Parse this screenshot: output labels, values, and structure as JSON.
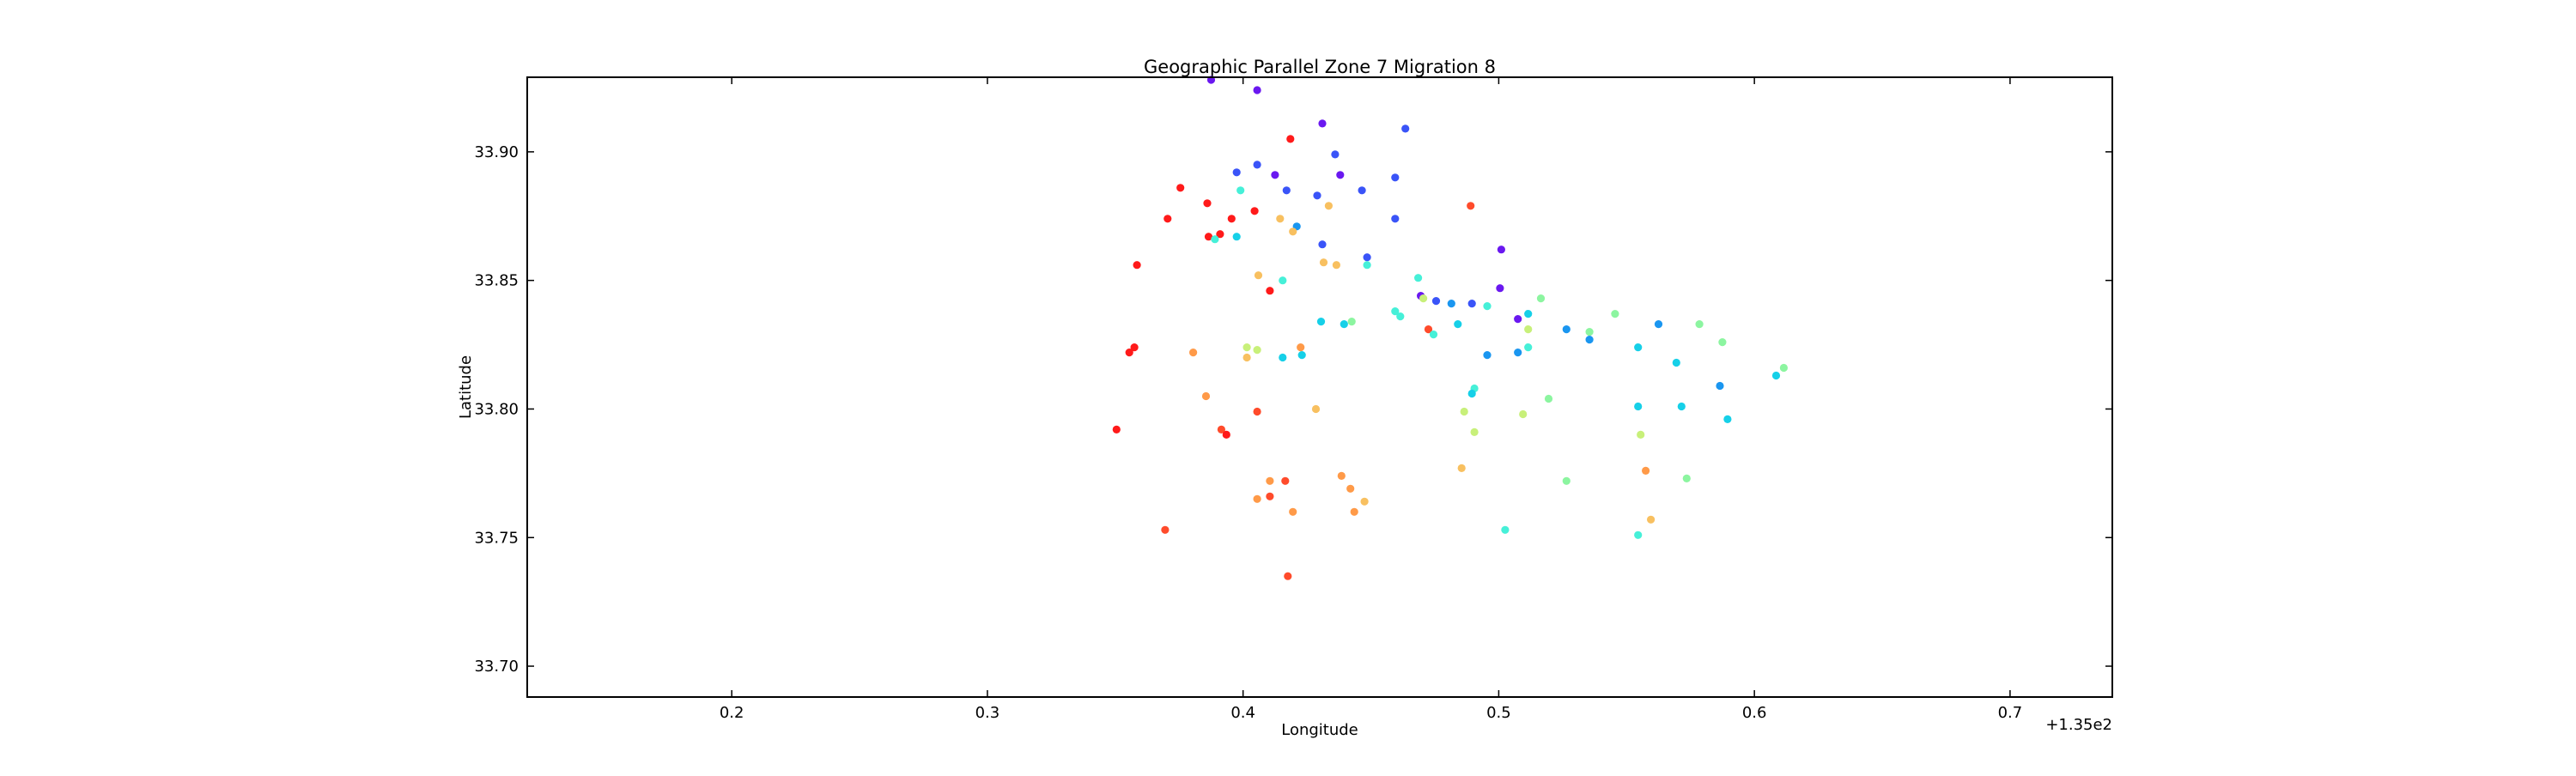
{
  "chart_data": {
    "type": "scatter",
    "title": "Geographic Parallel Zone 7 Migration 8",
    "xlabel": "Longitude",
    "ylabel": "Latitude",
    "x_offset_label": "+1.35e2",
    "xlim": [
      0.12,
      0.74
    ],
    "ylim": [
      33.688,
      33.929
    ],
    "x_ticks": [
      0.2,
      0.3,
      0.4,
      0.5,
      0.6,
      0.7
    ],
    "x_tick_labels": [
      "0.2",
      "0.3",
      "0.4",
      "0.5",
      "0.6",
      "0.7"
    ],
    "y_ticks": [
      33.7,
      33.75,
      33.8,
      33.85,
      33.9
    ],
    "y_tick_labels": [
      "33.70",
      "33.75",
      "33.80",
      "33.85",
      "33.90"
    ],
    "grid": false,
    "legend": "none",
    "colors": {
      "red": "#ff1a1a",
      "red_orange": "#ff4b2b",
      "orange": "#ff9a48",
      "light_orange": "#f8c060",
      "yellow_green": "#c8f07a",
      "light_green": "#8cf5a0",
      "aqua": "#46f0d8",
      "cyan": "#16d0e8",
      "sky_blue": "#1a96f0",
      "blue": "#3a54f8",
      "violet": "#6a18f0"
    },
    "points": [
      {
        "x": 0.3875,
        "y": 33.928,
        "c": "violet"
      },
      {
        "x": 0.4055,
        "y": 33.924,
        "c": "violet"
      },
      {
        "x": 0.431,
        "y": 33.911,
        "c": "violet"
      },
      {
        "x": 0.4635,
        "y": 33.909,
        "c": "blue"
      },
      {
        "x": 0.4185,
        "y": 33.905,
        "c": "red"
      },
      {
        "x": 0.436,
        "y": 33.899,
        "c": "blue"
      },
      {
        "x": 0.4055,
        "y": 33.895,
        "c": "blue"
      },
      {
        "x": 0.3975,
        "y": 33.892,
        "c": "blue"
      },
      {
        "x": 0.4125,
        "y": 33.891,
        "c": "violet"
      },
      {
        "x": 0.438,
        "y": 33.891,
        "c": "violet"
      },
      {
        "x": 0.4595,
        "y": 33.89,
        "c": "blue"
      },
      {
        "x": 0.3755,
        "y": 33.886,
        "c": "red"
      },
      {
        "x": 0.399,
        "y": 33.885,
        "c": "aqua"
      },
      {
        "x": 0.417,
        "y": 33.885,
        "c": "blue"
      },
      {
        "x": 0.4465,
        "y": 33.885,
        "c": "blue"
      },
      {
        "x": 0.429,
        "y": 33.883,
        "c": "blue"
      },
      {
        "x": 0.386,
        "y": 33.88,
        "c": "red"
      },
      {
        "x": 0.4335,
        "y": 33.879,
        "c": "light_orange"
      },
      {
        "x": 0.489,
        "y": 33.879,
        "c": "red_orange"
      },
      {
        "x": 0.4045,
        "y": 33.877,
        "c": "red"
      },
      {
        "x": 0.3705,
        "y": 33.874,
        "c": "red"
      },
      {
        "x": 0.3955,
        "y": 33.874,
        "c": "red"
      },
      {
        "x": 0.4145,
        "y": 33.874,
        "c": "light_orange"
      },
      {
        "x": 0.4595,
        "y": 33.874,
        "c": "blue"
      },
      {
        "x": 0.421,
        "y": 33.871,
        "c": "sky_blue"
      },
      {
        "x": 0.4195,
        "y": 33.869,
        "c": "light_orange"
      },
      {
        "x": 0.391,
        "y": 33.868,
        "c": "red"
      },
      {
        "x": 0.3865,
        "y": 33.867,
        "c": "red"
      },
      {
        "x": 0.3975,
        "y": 33.867,
        "c": "cyan"
      },
      {
        "x": 0.389,
        "y": 33.866,
        "c": "aqua"
      },
      {
        "x": 0.431,
        "y": 33.864,
        "c": "blue"
      },
      {
        "x": 0.501,
        "y": 33.862,
        "c": "violet"
      },
      {
        "x": 0.4485,
        "y": 33.859,
        "c": "blue"
      },
      {
        "x": 0.4315,
        "y": 33.857,
        "c": "light_orange"
      },
      {
        "x": 0.4365,
        "y": 33.856,
        "c": "light_orange"
      },
      {
        "x": 0.4485,
        "y": 33.856,
        "c": "aqua"
      },
      {
        "x": 0.3585,
        "y": 33.856,
        "c": "red"
      },
      {
        "x": 0.406,
        "y": 33.852,
        "c": "light_orange"
      },
      {
        "x": 0.4685,
        "y": 33.851,
        "c": "aqua"
      },
      {
        "x": 0.4155,
        "y": 33.85,
        "c": "aqua"
      },
      {
        "x": 0.5005,
        "y": 33.847,
        "c": "violet"
      },
      {
        "x": 0.4105,
        "y": 33.846,
        "c": "red"
      },
      {
        "x": 0.4695,
        "y": 33.844,
        "c": "violet"
      },
      {
        "x": 0.4705,
        "y": 33.843,
        "c": "yellow_green"
      },
      {
        "x": 0.5165,
        "y": 33.843,
        "c": "light_green"
      },
      {
        "x": 0.4755,
        "y": 33.842,
        "c": "blue"
      },
      {
        "x": 0.4815,
        "y": 33.841,
        "c": "sky_blue"
      },
      {
        "x": 0.4895,
        "y": 33.841,
        "c": "blue"
      },
      {
        "x": 0.4955,
        "y": 33.84,
        "c": "aqua"
      },
      {
        "x": 0.4595,
        "y": 33.838,
        "c": "aqua"
      },
      {
        "x": 0.4615,
        "y": 33.836,
        "c": "aqua"
      },
      {
        "x": 0.5115,
        "y": 33.837,
        "c": "cyan"
      },
      {
        "x": 0.5455,
        "y": 33.837,
        "c": "light_green"
      },
      {
        "x": 0.5075,
        "y": 33.835,
        "c": "violet"
      },
      {
        "x": 0.4305,
        "y": 33.834,
        "c": "cyan"
      },
      {
        "x": 0.4395,
        "y": 33.833,
        "c": "cyan"
      },
      {
        "x": 0.4425,
        "y": 33.834,
        "c": "light_green"
      },
      {
        "x": 0.484,
        "y": 33.833,
        "c": "cyan"
      },
      {
        "x": 0.5625,
        "y": 33.833,
        "c": "sky_blue"
      },
      {
        "x": 0.5785,
        "y": 33.833,
        "c": "light_green"
      },
      {
        "x": 0.5265,
        "y": 33.831,
        "c": "sky_blue"
      },
      {
        "x": 0.4725,
        "y": 33.831,
        "c": "red_orange"
      },
      {
        "x": 0.5115,
        "y": 33.831,
        "c": "yellow_green"
      },
      {
        "x": 0.4745,
        "y": 33.829,
        "c": "aqua"
      },
      {
        "x": 0.5355,
        "y": 33.83,
        "c": "light_green"
      },
      {
        "x": 0.5355,
        "y": 33.827,
        "c": "sky_blue"
      },
      {
        "x": 0.5875,
        "y": 33.826,
        "c": "light_green"
      },
      {
        "x": 0.4015,
        "y": 33.824,
        "c": "yellow_green"
      },
      {
        "x": 0.4225,
        "y": 33.824,
        "c": "orange"
      },
      {
        "x": 0.5115,
        "y": 33.824,
        "c": "aqua"
      },
      {
        "x": 0.5545,
        "y": 33.824,
        "c": "cyan"
      },
      {
        "x": 0.3575,
        "y": 33.824,
        "c": "red"
      },
      {
        "x": 0.3555,
        "y": 33.822,
        "c": "red"
      },
      {
        "x": 0.3805,
        "y": 33.822,
        "c": "orange"
      },
      {
        "x": 0.4055,
        "y": 33.823,
        "c": "yellow_green"
      },
      {
        "x": 0.4015,
        "y": 33.82,
        "c": "light_orange"
      },
      {
        "x": 0.4155,
        "y": 33.82,
        "c": "cyan"
      },
      {
        "x": 0.423,
        "y": 33.821,
        "c": "cyan"
      },
      {
        "x": 0.4955,
        "y": 33.821,
        "c": "sky_blue"
      },
      {
        "x": 0.5075,
        "y": 33.822,
        "c": "sky_blue"
      },
      {
        "x": 0.5695,
        "y": 33.818,
        "c": "cyan"
      },
      {
        "x": 0.6115,
        "y": 33.816,
        "c": "light_green"
      },
      {
        "x": 0.6085,
        "y": 33.813,
        "c": "cyan"
      },
      {
        "x": 0.5865,
        "y": 33.809,
        "c": "sky_blue"
      },
      {
        "x": 0.4905,
        "y": 33.808,
        "c": "aqua"
      },
      {
        "x": 0.4895,
        "y": 33.806,
        "c": "cyan"
      },
      {
        "x": 0.3855,
        "y": 33.805,
        "c": "orange"
      },
      {
        "x": 0.5195,
        "y": 33.804,
        "c": "light_green"
      },
      {
        "x": 0.5545,
        "y": 33.801,
        "c": "cyan"
      },
      {
        "x": 0.5715,
        "y": 33.801,
        "c": "cyan"
      },
      {
        "x": 0.4285,
        "y": 33.8,
        "c": "light_orange"
      },
      {
        "x": 0.4055,
        "y": 33.799,
        "c": "red_orange"
      },
      {
        "x": 0.4865,
        "y": 33.799,
        "c": "yellow_green"
      },
      {
        "x": 0.5095,
        "y": 33.798,
        "c": "yellow_green"
      },
      {
        "x": 0.5895,
        "y": 33.796,
        "c": "cyan"
      },
      {
        "x": 0.3505,
        "y": 33.792,
        "c": "red"
      },
      {
        "x": 0.3915,
        "y": 33.792,
        "c": "red_orange"
      },
      {
        "x": 0.3935,
        "y": 33.79,
        "c": "red"
      },
      {
        "x": 0.4905,
        "y": 33.791,
        "c": "yellow_green"
      },
      {
        "x": 0.5555,
        "y": 33.79,
        "c": "yellow_green"
      },
      {
        "x": 0.4855,
        "y": 33.777,
        "c": "light_orange"
      },
      {
        "x": 0.5575,
        "y": 33.776,
        "c": "orange"
      },
      {
        "x": 0.4385,
        "y": 33.774,
        "c": "orange"
      },
      {
        "x": 0.5265,
        "y": 33.772,
        "c": "light_green"
      },
      {
        "x": 0.5735,
        "y": 33.773,
        "c": "light_green"
      },
      {
        "x": 0.4105,
        "y": 33.772,
        "c": "orange"
      },
      {
        "x": 0.4165,
        "y": 33.772,
        "c": "red_orange"
      },
      {
        "x": 0.442,
        "y": 33.769,
        "c": "orange"
      },
      {
        "x": 0.4105,
        "y": 33.766,
        "c": "red_orange"
      },
      {
        "x": 0.4055,
        "y": 33.765,
        "c": "orange"
      },
      {
        "x": 0.4475,
        "y": 33.764,
        "c": "light_orange"
      },
      {
        "x": 0.4195,
        "y": 33.76,
        "c": "orange"
      },
      {
        "x": 0.4435,
        "y": 33.76,
        "c": "orange"
      },
      {
        "x": 0.5595,
        "y": 33.757,
        "c": "light_orange"
      },
      {
        "x": 0.3695,
        "y": 33.753,
        "c": "red_orange"
      },
      {
        "x": 0.5025,
        "y": 33.753,
        "c": "aqua"
      },
      {
        "x": 0.5545,
        "y": 33.751,
        "c": "aqua"
      },
      {
        "x": 0.4175,
        "y": 33.735,
        "c": "red_orange"
      }
    ]
  }
}
